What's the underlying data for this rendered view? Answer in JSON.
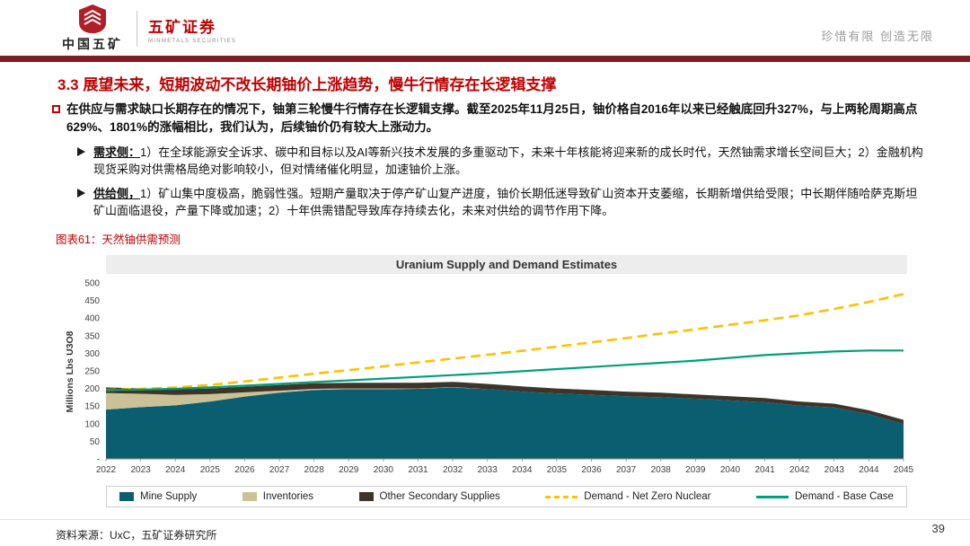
{
  "header": {
    "logo_cn": "中国五矿",
    "brand": "五矿证券",
    "brand_sub": "MINMETALS SECURITIES",
    "slogan": "珍惜有限 创造无限"
  },
  "title": "3.3 展望未来，短期波动不改长期铀价上涨趋势，慢牛行情存在长逻辑支撑",
  "body": {
    "para1": "在供应与需求缺口长期存在的情况下，铀第三轮慢牛行情存在长逻辑支撑。截至2025年11月25日，铀价格自2016年以来已经触底回升327%，与上两轮周期高点629%、1801%的涨幅相比，我们认为，后续铀价仍有较大上涨动力。",
    "demand_label": "需求侧：",
    "demand_text": "1）在全球能源安全诉求、碳中和目标以及AI等新兴技术发展的多重驱动下，未来十年核能将迎来新的成长时代，天然铀需求增长空间巨大；2）金融机构现货采购对供需格局绝对影响较小，但对情绪催化明显，加速铀价上涨。",
    "supply_label": "供给侧，",
    "supply_text": "1）矿山集中度极高，脆弱性强。短期产量取决于停产矿山复产进度，铀价长期低迷导致矿山资本开支萎缩，长期新增供给受限；中长期伴随哈萨克斯坦矿山面临退役，产量下降或加速；2）十年供需错配导致库存持续去化，未来对供给的调节作用下降。"
  },
  "figure_caption": "图表61：天然铀供需预测",
  "chart_data": {
    "type": "area",
    "title": "Uranium Supply and Demand Estimates",
    "xlabel": "",
    "ylabel": "Millions Lbs U3O8",
    "ylim": [
      0,
      500
    ],
    "ytick_step": 50,
    "ytick_zero_label": "-",
    "grid": false,
    "legend_position": "bottom",
    "years": [
      2022,
      2023,
      2024,
      2025,
      2026,
      2027,
      2028,
      2029,
      2030,
      2031,
      2032,
      2033,
      2034,
      2035,
      2036,
      2037,
      2038,
      2039,
      2040,
      2041,
      2042,
      2043,
      2044,
      2045
    ],
    "stacked_series": [
      {
        "name": "Mine Supply",
        "color": "#0B5E6F",
        "values": [
          140,
          147,
          152,
          163,
          177,
          188,
          196,
          198,
          198,
          199,
          203,
          198,
          191,
          186,
          182,
          178,
          175,
          171,
          166,
          161,
          151,
          146,
          127,
          99
        ]
      },
      {
        "name": "Inventories",
        "color": "#CBC196",
        "values": [
          47,
          38,
          30,
          21,
          12,
          6,
          3,
          2,
          2,
          1,
          1,
          0,
          0,
          0,
          0,
          0,
          0,
          0,
          0,
          0,
          0,
          0,
          0,
          0
        ]
      },
      {
        "name": "Other Secondary Supplies",
        "color": "#3E352A",
        "values": [
          16,
          15,
          15,
          16,
          16,
          16,
          16,
          16,
          16,
          16,
          15,
          15,
          15,
          14,
          14,
          13,
          13,
          12,
          12,
          12,
          12,
          11,
          11,
          12
        ]
      }
    ],
    "line_series": [
      {
        "name": "Demand - Net Zero Nuclear",
        "color": "#FFC000",
        "dash": true,
        "values": [
          196,
          199,
          203,
          210,
          220,
          231,
          242,
          252,
          263,
          274,
          285,
          296,
          307,
          319,
          331,
          343,
          356,
          368,
          381,
          394,
          408,
          426,
          446,
          468
        ]
      },
      {
        "name": "Demand - Base Case",
        "color": "#00A077",
        "dash": false,
        "values": [
          196,
          197,
          199,
          203,
          208,
          213,
          218,
          223,
          228,
          233,
          238,
          243,
          249,
          255,
          261,
          267,
          273,
          279,
          287,
          295,
          300,
          305,
          308,
          308
        ]
      }
    ]
  },
  "footer": {
    "source": "资料来源：UxC，五矿证券研究所",
    "page": "39"
  }
}
